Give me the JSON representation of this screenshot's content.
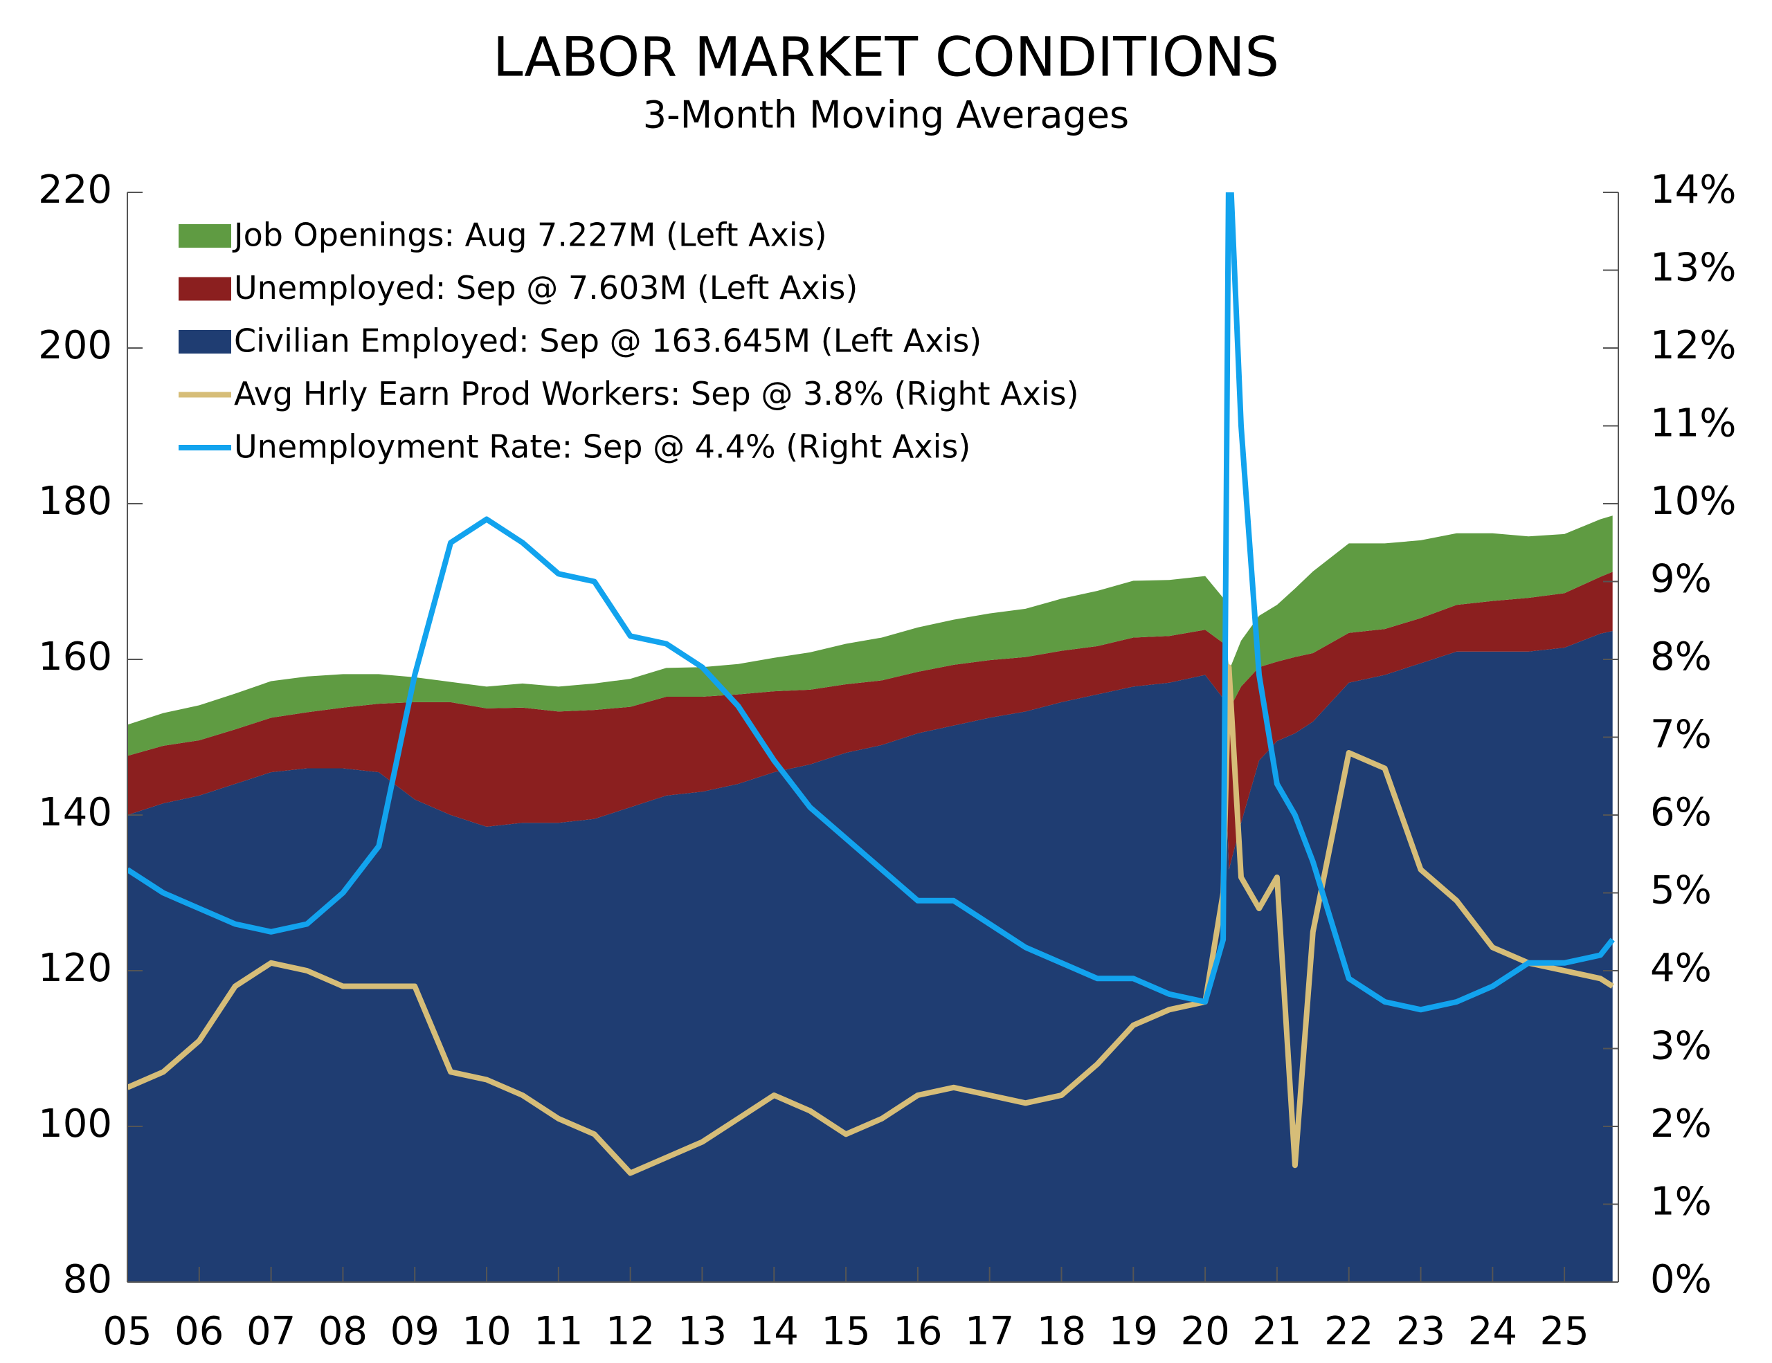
{
  "chart_data": {
    "type": "area",
    "title": "LABOR MARKET CONDITIONS",
    "subtitle": "3-Month Moving Averages",
    "x": [
      2005,
      2005.5,
      2006,
      2006.5,
      2007,
      2007.5,
      2008,
      2008.5,
      2009,
      2009.5,
      2010,
      2010.5,
      2011,
      2011.5,
      2012,
      2012.5,
      2013,
      2013.5,
      2014,
      2014.5,
      2015,
      2015.5,
      2016,
      2016.5,
      2017,
      2017.5,
      2018,
      2018.5,
      2019,
      2019.5,
      2020,
      2020.25,
      2020.33,
      2020.5,
      2020.75,
      2021,
      2021.25,
      2021.5,
      2022,
      2022.5,
      2023,
      2023.5,
      2024,
      2024.5,
      2025,
      2025.5,
      2025.67
    ],
    "xlim": [
      2005,
      2025.75
    ],
    "xticks": [
      {
        "value": 2005,
        "label": "05"
      },
      {
        "value": 2006,
        "label": "06"
      },
      {
        "value": 2007,
        "label": "07"
      },
      {
        "value": 2008,
        "label": "08"
      },
      {
        "value": 2009,
        "label": "09"
      },
      {
        "value": 2010,
        "label": "10"
      },
      {
        "value": 2011,
        "label": "11"
      },
      {
        "value": 2012,
        "label": "12"
      },
      {
        "value": 2013,
        "label": "13"
      },
      {
        "value": 2014,
        "label": "14"
      },
      {
        "value": 2015,
        "label": "15"
      },
      {
        "value": 2016,
        "label": "16"
      },
      {
        "value": 2017,
        "label": "17"
      },
      {
        "value": 2018,
        "label": "18"
      },
      {
        "value": 2019,
        "label": "19"
      },
      {
        "value": 2020,
        "label": "20"
      },
      {
        "value": 2021,
        "label": "21"
      },
      {
        "value": 2022,
        "label": "22"
      },
      {
        "value": 2023,
        "label": "23"
      },
      {
        "value": 2024,
        "label": "24"
      },
      {
        "value": 2025,
        "label": "25"
      }
    ],
    "ylim": [
      80,
      220
    ],
    "yticks": [
      80,
      100,
      120,
      140,
      160,
      180,
      200,
      220
    ],
    "y2lim": [
      0,
      14
    ],
    "y2ticks": [
      {
        "value": 0,
        "label": "0%"
      },
      {
        "value": 1,
        "label": "1%"
      },
      {
        "value": 2,
        "label": "2%"
      },
      {
        "value": 3,
        "label": "3%"
      },
      {
        "value": 4,
        "label": "4%"
      },
      {
        "value": 5,
        "label": "5%"
      },
      {
        "value": 6,
        "label": "6%"
      },
      {
        "value": 7,
        "label": "7%"
      },
      {
        "value": 8,
        "label": "8%"
      },
      {
        "value": 9,
        "label": "9%"
      },
      {
        "value": 10,
        "label": "10%"
      },
      {
        "value": 11,
        "label": "11%"
      },
      {
        "value": 12,
        "label": "12%"
      },
      {
        "value": 13,
        "label": "13%"
      },
      {
        "value": 14,
        "label": "14%"
      }
    ],
    "legend": "upper left",
    "series": [
      {
        "name": "Job Openings: Aug 7.227M (Left Axis)",
        "type": "area",
        "axis": "y",
        "color": "#5f9b42",
        "values": [
          4.0,
          4.2,
          4.5,
          4.6,
          4.7,
          4.6,
          4.3,
          3.8,
          3.2,
          2.6,
          2.8,
          3.1,
          3.2,
          3.4,
          3.6,
          3.7,
          3.8,
          3.9,
          4.3,
          4.8,
          5.2,
          5.5,
          5.7,
          5.8,
          6.0,
          6.2,
          6.7,
          7.1,
          7.3,
          7.2,
          6.9,
          5.8,
          5.0,
          5.9,
          6.6,
          7.3,
          8.8,
          10.5,
          11.5,
          11.0,
          10.0,
          9.2,
          8.7,
          7.9,
          7.6,
          7.4,
          7.227
        ]
      },
      {
        "name": "Unemployed: Sep @ 7.603M (Left Axis)",
        "type": "area",
        "axis": "y",
        "color": "#8b1f1f",
        "values": [
          7.6,
          7.4,
          7.1,
          7.0,
          7.0,
          7.2,
          7.8,
          8.8,
          12.5,
          14.5,
          15.2,
          14.8,
          14.3,
          14.0,
          12.9,
          12.7,
          12.2,
          11.5,
          10.4,
          9.6,
          8.8,
          8.3,
          7.9,
          7.8,
          7.4,
          7.0,
          6.6,
          6.2,
          6.3,
          6.0,
          5.8,
          7.1,
          20.5,
          17.5,
          12.0,
          10.2,
          9.8,
          8.8,
          6.4,
          5.9,
          5.8,
          6.0,
          6.5,
          6.9,
          7.0,
          7.3,
          7.603
        ]
      },
      {
        "name": "Civilian Employed: Sep @ 163.645M (Left Axis)",
        "type": "area",
        "axis": "y",
        "color": "#1f3d72",
        "values": [
          140,
          141.5,
          142.5,
          144,
          145.5,
          146,
          146,
          145.5,
          142,
          140,
          138.5,
          139,
          139,
          139.5,
          141,
          142.5,
          143,
          144,
          145.5,
          146.5,
          148,
          149,
          150.5,
          151.5,
          152.5,
          153.3,
          154.5,
          155.5,
          156.5,
          157,
          158,
          155,
          133,
          139,
          147,
          149.5,
          150.5,
          152,
          157,
          158,
          159.5,
          161,
          161,
          161,
          161.5,
          163.3,
          163.645
        ]
      },
      {
        "name": "Avg Hrly Earn Prod Workers: Sep @ 3.8% (Right Axis)",
        "type": "line",
        "axis": "y2",
        "color": "#d6bd78",
        "values": [
          2.5,
          2.7,
          3.1,
          3.8,
          4.1,
          4.0,
          3.8,
          3.8,
          3.8,
          2.7,
          2.6,
          2.4,
          2.1,
          1.9,
          1.4,
          1.6,
          1.8,
          2.1,
          2.4,
          2.2,
          1.9,
          2.1,
          2.4,
          2.5,
          2.4,
          2.3,
          2.4,
          2.8,
          3.3,
          3.5,
          3.6,
          5.0,
          7.9,
          5.2,
          4.8,
          5.2,
          1.5,
          4.5,
          6.8,
          6.6,
          5.3,
          4.9,
          4.3,
          4.1,
          4.0,
          3.9,
          3.8
        ]
      },
      {
        "name": "Unemployment Rate: Sep @ 4.4% (Right Axis)",
        "type": "line",
        "axis": "y2",
        "color": "#12a3ee",
        "values": [
          5.3,
          5.0,
          4.8,
          4.6,
          4.5,
          4.6,
          5.0,
          5.6,
          7.8,
          9.5,
          9.8,
          9.5,
          9.1,
          9.0,
          8.3,
          8.2,
          7.9,
          7.4,
          6.7,
          6.1,
          5.7,
          5.3,
          4.9,
          4.9,
          4.6,
          4.3,
          4.1,
          3.9,
          3.9,
          3.7,
          3.6,
          4.4,
          14.7,
          11.0,
          7.8,
          6.4,
          6.0,
          5.4,
          3.9,
          3.6,
          3.5,
          3.6,
          3.8,
          4.1,
          4.1,
          4.2,
          4.4
        ]
      }
    ]
  }
}
